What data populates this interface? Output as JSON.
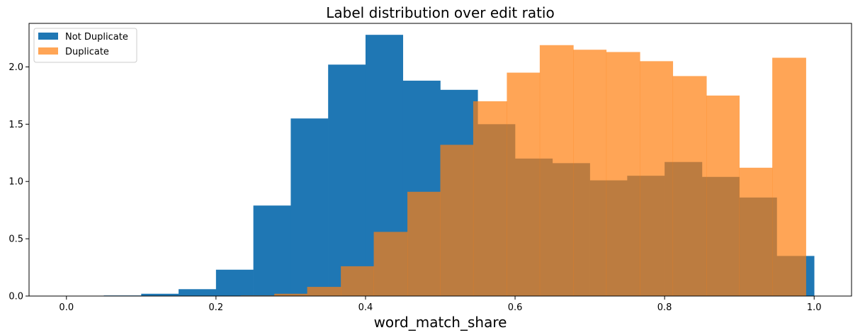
{
  "chart_data": {
    "type": "bar",
    "title": "Label distribution over edit ratio",
    "xlabel": "word_match_share",
    "ylabel": "",
    "xlim": [
      -0.05,
      1.05
    ],
    "ylim": [
      0,
      2.38
    ],
    "xticks": [
      0.0,
      0.2,
      0.4,
      0.6,
      0.8,
      1.0
    ],
    "xtick_labels": [
      "0.0",
      "0.2",
      "0.4",
      "0.6",
      "0.8",
      "1.0"
    ],
    "yticks": [
      0.0,
      0.5,
      1.0,
      1.5,
      2.0
    ],
    "ytick_labels": [
      "0.0",
      "0.5",
      "1.0",
      "1.5",
      "2.0"
    ],
    "legend_position": "top-left",
    "grid": false,
    "series": [
      {
        "name": "Not Duplicate",
        "color": "#1f77b4",
        "opacity": 1.0,
        "bins": [
          [
            0.05,
            0.1,
            0.005
          ],
          [
            0.1,
            0.15,
            0.02
          ],
          [
            0.15,
            0.2,
            0.06
          ],
          [
            0.2,
            0.25,
            0.23
          ],
          [
            0.25,
            0.3,
            0.79
          ],
          [
            0.3,
            0.35,
            1.55
          ],
          [
            0.35,
            0.4,
            2.02
          ],
          [
            0.4,
            0.45,
            2.28
          ],
          [
            0.45,
            0.5,
            1.88
          ],
          [
            0.5,
            0.55,
            1.8
          ],
          [
            0.55,
            0.6,
            1.5
          ],
          [
            0.6,
            0.65,
            1.2
          ],
          [
            0.65,
            0.7,
            1.16
          ],
          [
            0.7,
            0.75,
            1.01
          ],
          [
            0.75,
            0.8,
            1.05
          ],
          [
            0.8,
            0.85,
            1.17
          ],
          [
            0.85,
            0.9,
            1.04
          ],
          [
            0.9,
            0.95,
            0.86
          ],
          [
            0.95,
            1.0,
            0.35
          ]
        ]
      },
      {
        "name": "Duplicate",
        "color": "#ff7f0e",
        "opacity": 0.7,
        "bins": [
          [
            0.233,
            0.278,
            0.005
          ],
          [
            0.278,
            0.322,
            0.02
          ],
          [
            0.322,
            0.367,
            0.08
          ],
          [
            0.367,
            0.411,
            0.26
          ],
          [
            0.411,
            0.456,
            0.56
          ],
          [
            0.456,
            0.5,
            0.91
          ],
          [
            0.5,
            0.544,
            1.32
          ],
          [
            0.544,
            0.589,
            1.7
          ],
          [
            0.589,
            0.633,
            1.95
          ],
          [
            0.633,
            0.678,
            2.19
          ],
          [
            0.678,
            0.722,
            2.15
          ],
          [
            0.722,
            0.767,
            2.13
          ],
          [
            0.767,
            0.811,
            2.05
          ],
          [
            0.811,
            0.856,
            1.92
          ],
          [
            0.856,
            0.9,
            1.75
          ],
          [
            0.9,
            0.944,
            1.12
          ],
          [
            0.944,
            0.989,
            2.08
          ]
        ]
      }
    ]
  }
}
